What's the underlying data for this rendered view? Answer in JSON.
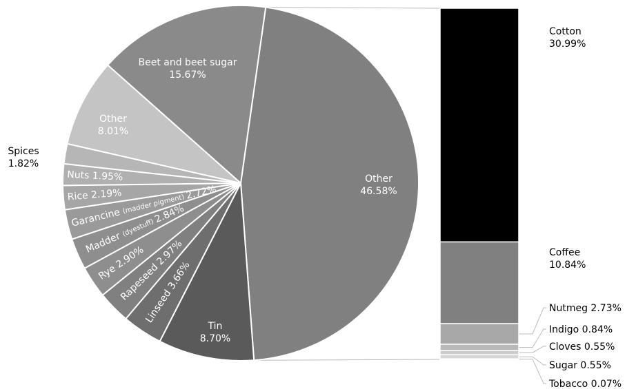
{
  "chart_data": {
    "type": "pie",
    "pie": {
      "slices": [
        {
          "label": "Other",
          "value": 46.58,
          "color": "#808080",
          "text_color": "#ffffff"
        },
        {
          "label": "Tin",
          "value": 8.7,
          "color": "#5a5a5a",
          "text_color": "#ffffff"
        },
        {
          "label": "Linseed",
          "value": 3.66,
          "color": "#6e6e6e",
          "text_color": "#ffffff"
        },
        {
          "label": "Rapeseed",
          "value": 2.97,
          "color": "#808080",
          "text_color": "#ffffff"
        },
        {
          "label": "Rye",
          "value": 2.9,
          "color": "#8e8e8e",
          "text_color": "#ffffff"
        },
        {
          "label": "Madder",
          "sublabel": "(dyestuff)",
          "value": 2.84,
          "color": "#8e8e8e",
          "text_color": "#ffffff"
        },
        {
          "label": "Garancine",
          "sublabel": "(madder pigment)",
          "value": 2.72,
          "color": "#9a9a9a",
          "text_color": "#ffffff"
        },
        {
          "label": "Rice",
          "value": 2.19,
          "color": "#a6a6a6",
          "text_color": "#ffffff"
        },
        {
          "label": "Nuts",
          "value": 1.95,
          "color": "#b0b0b0",
          "text_color": "#ffffff"
        },
        {
          "label": "Spices",
          "value": 1.82,
          "color": "#b6b6b6",
          "text_color": "#000000"
        },
        {
          "label": "Other",
          "value": 8.01,
          "color": "#c4c4c4",
          "text_color": "#ffffff"
        },
        {
          "label": "Beet and beet sugar",
          "value": 15.67,
          "color": "#8a8a8a",
          "text_color": "#ffffff"
        }
      ]
    },
    "breakdown": {
      "of": "Other",
      "segments": [
        {
          "label": "Cotton",
          "value": 30.99,
          "color": "#000000"
        },
        {
          "label": "Coffee",
          "value": 10.84,
          "color": "#808080"
        },
        {
          "label": "Nutmeg",
          "value": 2.73,
          "color": "#a8a8a8"
        },
        {
          "label": "Indigo",
          "value": 0.84,
          "color": "#b8b8b8"
        },
        {
          "label": "Cloves",
          "value": 0.55,
          "color": "#cccccc"
        },
        {
          "label": "Sugar",
          "value": 0.55,
          "color": "#d6d6d6"
        },
        {
          "label": "Tobacco",
          "value": 0.07,
          "color": "#e2e2e2"
        }
      ]
    }
  }
}
